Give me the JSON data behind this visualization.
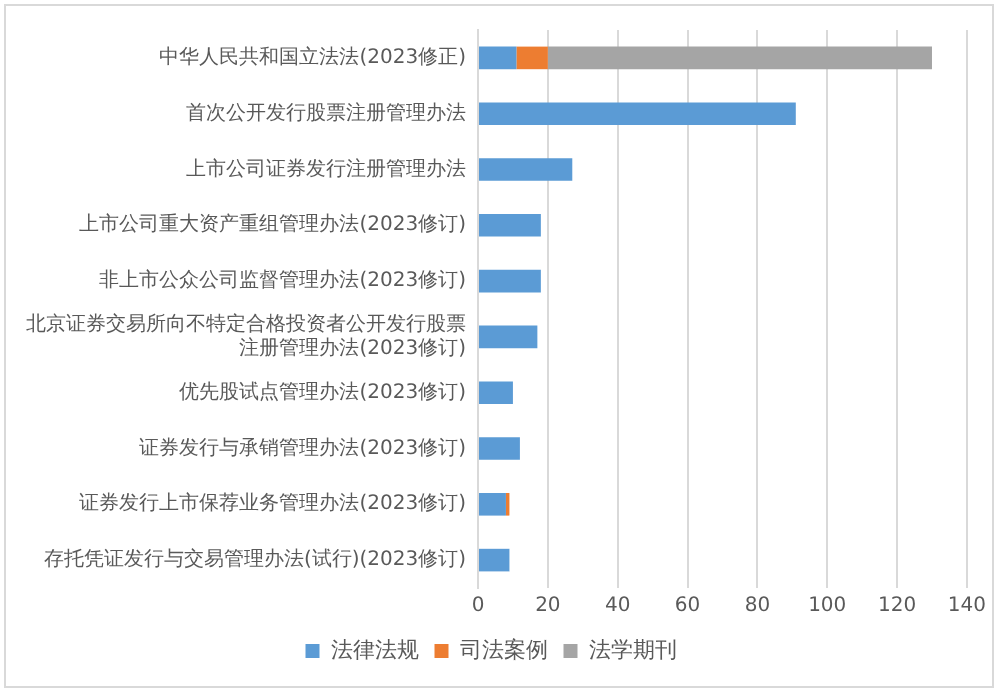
{
  "chart_data": {
    "type": "bar",
    "orientation": "horizontal",
    "stacked": true,
    "categories": [
      "中华人民共和国立法法(2023修正)",
      "首次公开发行股票注册管理办法",
      "上市公司证券发行注册管理办法",
      "上市公司重大资产重组管理办法(2023修订)",
      "非上市公众公司监督管理办法(2023修订)",
      "北京证券交易所向不特定合格投资者公开发行股票注册管理办法(2023修订)",
      "优先股试点管理办法(2023修订)",
      "证券发行与承销管理办法(2023修订)",
      "证券发行上市保荐业务管理办法(2023修订)",
      "存托凭证发行与交易管理办法(试行)(2023修订)"
    ],
    "series": [
      {
        "name": "法律法规",
        "color": "#5b9bd5",
        "values": [
          11,
          91,
          27,
          18,
          18,
          17,
          10,
          12,
          8,
          9
        ]
      },
      {
        "name": "司法案例",
        "color": "#ed7d31",
        "values": [
          9,
          0,
          0,
          0,
          0,
          0,
          0,
          0,
          1,
          0
        ]
      },
      {
        "name": "法学期刊",
        "color": "#a5a5a5",
        "values": [
          110,
          0,
          0,
          0,
          0,
          0,
          0,
          0,
          0,
          0
        ]
      }
    ],
    "xlim": [
      0,
      140
    ],
    "xticks": [
      0,
      20,
      40,
      60,
      80,
      100,
      120,
      140
    ],
    "grid": "x",
    "legend": "bottom"
  }
}
